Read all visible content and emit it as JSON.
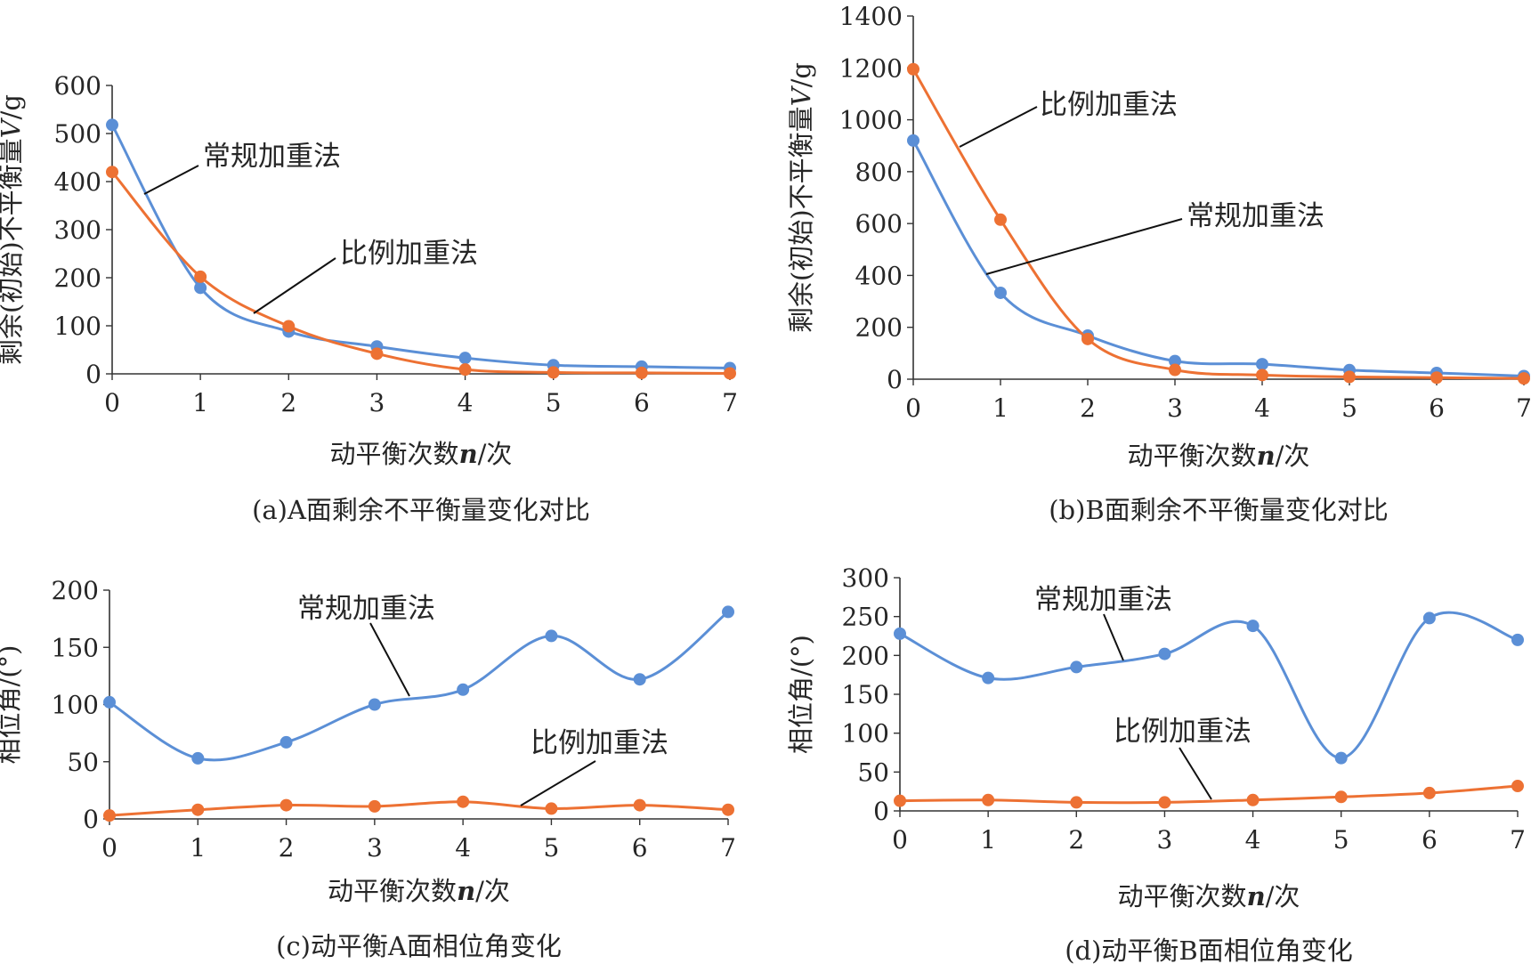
{
  "colors": {
    "blue": "#5b8fd6",
    "orange": "#ed7133",
    "text": "#262626",
    "axis": "#333333"
  },
  "chart_data": [
    {
      "type": "line",
      "caption": "(a)A面剩余不平衡量变化对比",
      "ylabel_parts": [
        "剩余(初始)不平衡量",
        "V",
        "/g"
      ],
      "xlabel_parts": [
        "动平衡次数",
        "n",
        "/次"
      ],
      "x": [
        0,
        1,
        2,
        3,
        4,
        5,
        6,
        7
      ],
      "ylim": [
        0,
        600
      ],
      "yticks": [
        0,
        100,
        200,
        300,
        400,
        500,
        600
      ],
      "series": [
        {
          "name": "常规加重法",
          "color": "#5b8fd6",
          "values": [
            518,
            179,
            88,
            57,
            33,
            18,
            15,
            12
          ]
        },
        {
          "name": "比例加重法",
          "color": "#ed7133",
          "values": [
            420,
            202,
            99,
            42,
            9,
            3,
            2,
            1
          ]
        }
      ]
    },
    {
      "type": "line",
      "caption": "(b)B面剩余不平衡量变化对比",
      "ylabel_parts": [
        "剩余(初始)不平衡量",
        "V",
        "/g"
      ],
      "xlabel_parts": [
        "动平衡次数",
        "n",
        "/次"
      ],
      "x": [
        0,
        1,
        2,
        3,
        4,
        5,
        6,
        7
      ],
      "ylim": [
        0,
        1400
      ],
      "yticks": [
        0,
        200,
        400,
        600,
        800,
        1000,
        1200,
        1400
      ],
      "series": [
        {
          "name": "常规加重法",
          "color": "#5b8fd6",
          "values": [
            920,
            333,
            168,
            70,
            58,
            35,
            24,
            12
          ]
        },
        {
          "name": "比例加重法",
          "color": "#ed7133",
          "values": [
            1195,
            615,
            155,
            36,
            16,
            9,
            6,
            3
          ]
        }
      ]
    },
    {
      "type": "line",
      "caption": "(c)动平衡A面相位角变化",
      "ylabel_parts": [
        "相位角/(°)"
      ],
      "xlabel_parts": [
        "动平衡次数",
        "n",
        "/次"
      ],
      "x": [
        0,
        1,
        2,
        3,
        4,
        5,
        6,
        7
      ],
      "ylim": [
        0,
        200
      ],
      "yticks": [
        0,
        50,
        100,
        150,
        200
      ],
      "series": [
        {
          "name": "常规加重法",
          "color": "#5b8fd6",
          "values": [
            102,
            53,
            67,
            100,
            113,
            160,
            122,
            181
          ]
        },
        {
          "name": "比例加重法",
          "color": "#ed7133",
          "values": [
            3,
            8,
            12,
            11,
            15,
            9,
            12,
            8
          ]
        }
      ]
    },
    {
      "type": "line",
      "caption": "(d)动平衡B面相位角变化",
      "ylabel_parts": [
        "相位角/(°)"
      ],
      "xlabel_parts": [
        "动平衡次数",
        "n",
        "/次"
      ],
      "x": [
        0,
        1,
        2,
        3,
        4,
        5,
        6,
        7
      ],
      "ylim": [
        0,
        300
      ],
      "yticks": [
        0,
        50,
        100,
        150,
        200,
        250,
        300
      ],
      "series": [
        {
          "name": "常规加重法",
          "color": "#5b8fd6",
          "values": [
            228,
            171,
            185,
            202,
            238,
            68,
            248,
            220
          ]
        },
        {
          "name": "比例加重法",
          "color": "#ed7133",
          "values": [
            13,
            14,
            11,
            11,
            14,
            18,
            23,
            32
          ]
        }
      ]
    }
  ]
}
